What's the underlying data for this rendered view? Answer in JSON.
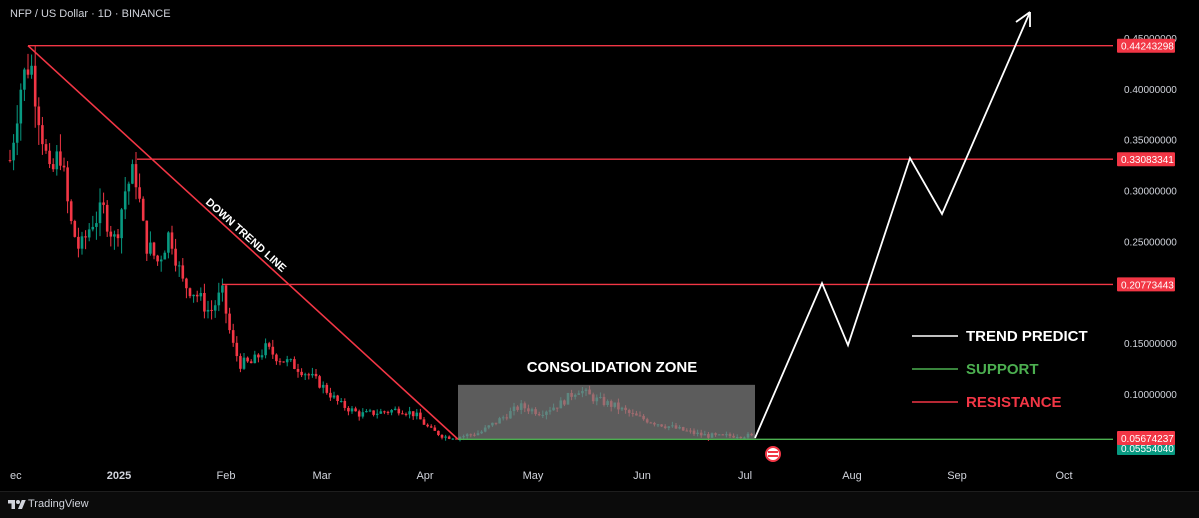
{
  "header": {
    "symbol_line": "NFP / US Dollar · 1D · BINANCE"
  },
  "footer": {
    "brand": "TradingView"
  },
  "chart_data": {
    "type": "candlestick",
    "title": "NFP / US Dollar · 1D · BINANCE",
    "ylim": [
      0.0,
      0.47
    ],
    "y_ticks": [
      {
        "value": 0.1,
        "label": "0.10000000"
      },
      {
        "value": 0.15,
        "label": "0.15000000"
      },
      {
        "value": 0.25,
        "label": "0.25000000"
      },
      {
        "value": 0.3,
        "label": "0.30000000"
      },
      {
        "value": 0.35,
        "label": "0.35000000"
      },
      {
        "value": 0.4,
        "label": "0.40000000"
      },
      {
        "value": 0.45,
        "label": "0.45000000"
      }
    ],
    "x_ticks": [
      "ec",
      "2025",
      "Feb",
      "Mar",
      "Apr",
      "May",
      "Jun",
      "Jul",
      "Aug",
      "Sep",
      "Oct"
    ],
    "grid": false,
    "price_levels": [
      {
        "role": "resistance",
        "value": 0.44243298,
        "label": "0.44243298",
        "color": "#f23645"
      },
      {
        "role": "resistance",
        "value": 0.33083341,
        "label": "0.33083341",
        "color": "#f23645"
      },
      {
        "role": "resistance",
        "value": 0.20773443,
        "label": "0.20773443",
        "color": "#f23645"
      },
      {
        "role": "current",
        "value": 0.05674237,
        "label": "0.05674237",
        "color": "#f23645"
      },
      {
        "role": "support",
        "value": 0.0555,
        "label": "0.05554040",
        "color": "#089981"
      }
    ],
    "annotations": {
      "trendline_label": "DOWN TREND LINE",
      "zone_label": "CONSOLIDATION ZONE"
    },
    "legend": [
      {
        "label": "TREND PREDICT",
        "color": "#ffffff"
      },
      {
        "label": "SUPPORT",
        "color": "#4caf50"
      },
      {
        "label": "RESISTANCE",
        "color": "#f23645"
      }
    ],
    "colors": {
      "up": "#089981",
      "down": "#f23645",
      "background": "#000000",
      "zone": "#808080"
    }
  }
}
